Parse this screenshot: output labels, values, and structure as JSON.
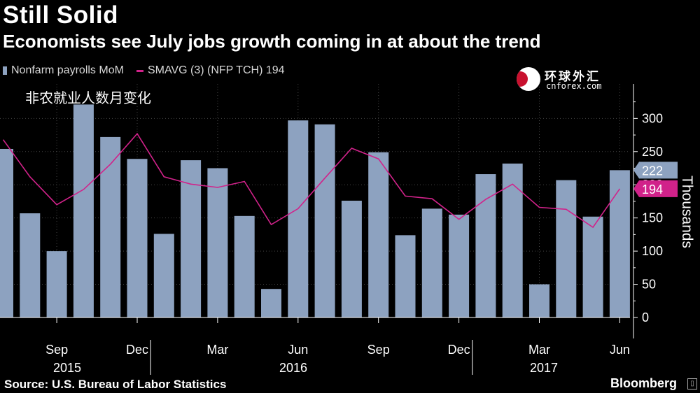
{
  "title": "Still Solid",
  "subtitle": "Economists see July jobs growth coming in at about the trend",
  "legend": {
    "series1": "Nonfarm payrolls MoM",
    "series2": "SMAVG (3) (NFP TCH) 194"
  },
  "cn_label": "非农就业人数月变化",
  "logo": {
    "cn": "环球外汇",
    "en": "cnforex.com"
  },
  "source": "Source: U.S. Bureau of Labor Statistics",
  "brand": "Bloomberg",
  "colors": {
    "bars": "#8da2c0",
    "line": "#d1228a",
    "background": "#000000"
  },
  "chart_data": {
    "type": "bar",
    "ylabel": "Thousands",
    "ylim": [
      0,
      340
    ],
    "yticks": [
      0,
      50,
      100,
      150,
      200,
      250,
      300
    ],
    "grid": true,
    "legend_position": "top-left",
    "x_tick_labels": [
      "Sep",
      "Dec",
      "Mar",
      "Jun",
      "Sep",
      "Dec",
      "Mar",
      "Jun"
    ],
    "year_labels": [
      "2015",
      "2016",
      "2017"
    ],
    "categories": [
      "Jul 2015",
      "Aug 2015",
      "Sep 2015",
      "Oct 2015",
      "Nov 2015",
      "Dec 2015",
      "Jan 2016",
      "Feb 2016",
      "Mar 2016",
      "Apr 2016",
      "May 2016",
      "Jun 2016",
      "Jul 2016",
      "Aug 2016",
      "Sep 2016",
      "Oct 2016",
      "Nov 2016",
      "Dec 2016",
      "Jan 2017",
      "Feb 2017",
      "Mar 2017",
      "Apr 2017",
      "May 2017",
      "Jun 2017"
    ],
    "series": [
      {
        "name": "Nonfarm payrolls MoM",
        "type": "bar",
        "values": [
          254,
          157,
          100,
          321,
          272,
          239,
          126,
          237,
          225,
          153,
          43,
          297,
          291,
          176,
          249,
          124,
          164,
          155,
          216,
          232,
          50,
          207,
          152,
          222
        ]
      },
      {
        "name": "SMAVG (3) (NFP TCH) 194",
        "type": "line",
        "values": [
          268,
          212,
          170,
          193,
          231,
          277,
          212,
          201,
          196,
          205,
          140,
          164,
          210,
          255,
          239,
          183,
          179,
          148,
          178,
          201,
          166,
          163,
          136,
          194
        ]
      }
    ],
    "last_value_labels": [
      "222",
      "194"
    ]
  }
}
